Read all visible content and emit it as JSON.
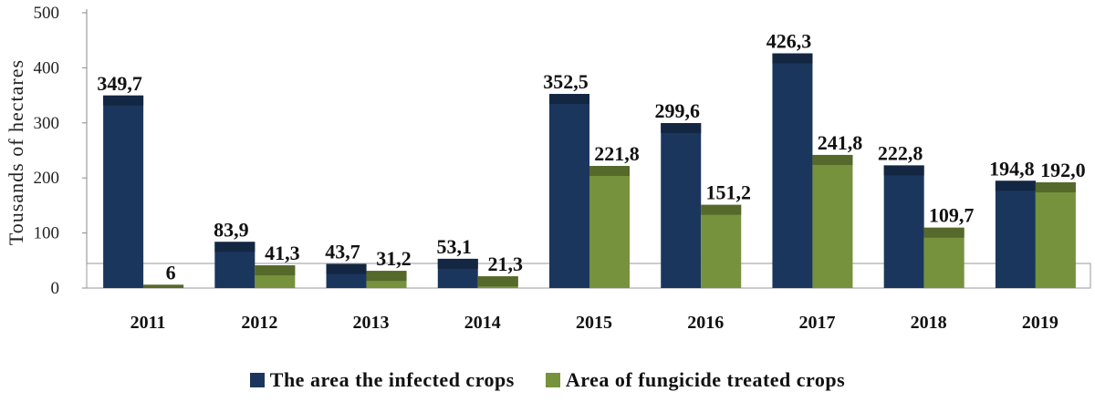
{
  "chart_data": {
    "type": "bar",
    "ylabel": "Tousands of hectares",
    "ylim": [
      0,
      500
    ],
    "yticks": [
      0,
      100,
      200,
      300,
      400,
      500
    ],
    "categories": [
      "2011",
      "2012",
      "2013",
      "2014",
      "2015",
      "2016",
      "2017",
      "2018",
      "2019"
    ],
    "series": [
      {
        "name": "The area the infected crops",
        "color": "#1b365d",
        "values": [
          349.7,
          83.9,
          43.7,
          53.1,
          352.5,
          299.6,
          426.3,
          222.8,
          194.8
        ],
        "labels": [
          "349,7",
          "83,9",
          "43,7",
          "53,1",
          "352,5",
          "299,6",
          "426,3",
          "222,8",
          "194,8"
        ]
      },
      {
        "name": "Area of fungicide treated crops",
        "color": "#76923c",
        "values": [
          6,
          41.3,
          31.2,
          21.3,
          221.8,
          151.2,
          241.8,
          109.7,
          192.0
        ],
        "labels": [
          "6",
          "41,3",
          "31,2",
          "21,3",
          "221,8",
          "151,2",
          "241,8",
          "109,7",
          "192,0"
        ]
      }
    ],
    "legend_position": "bottom",
    "grid": false
  }
}
